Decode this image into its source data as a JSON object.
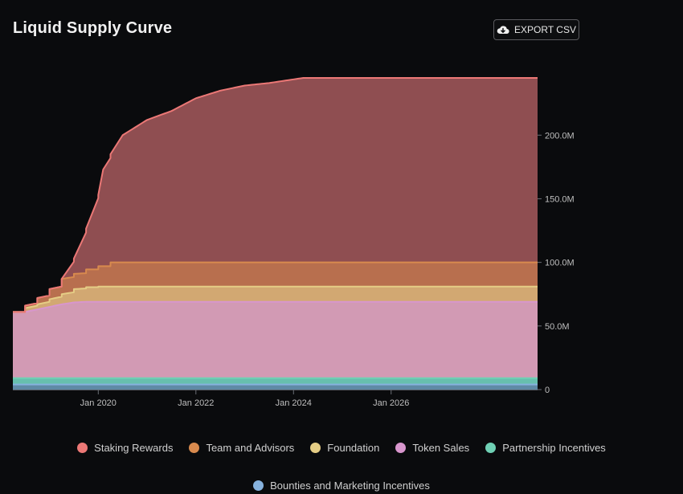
{
  "header": {
    "title": "Liquid Supply Curve",
    "export_label": "EXPORT CSV"
  },
  "icons": {
    "export": "cloud-download-icon"
  },
  "chart_data": {
    "type": "area",
    "stacked": true,
    "title": "Liquid Supply Curve",
    "x_unit": "year",
    "x_range": [
      2018.25,
      2029.0
    ],
    "y_range": [
      0,
      245
    ],
    "y_unit": "million tokens",
    "y_ticks": [
      {
        "value": 0,
        "label": "0"
      },
      {
        "value": 50,
        "label": "50.0M"
      },
      {
        "value": 100,
        "label": "100.0M"
      },
      {
        "value": 150,
        "label": "150.0M"
      },
      {
        "value": 200,
        "label": "200.0M"
      }
    ],
    "x_ticks": [
      {
        "value": 2020,
        "label": "Jan 2020"
      },
      {
        "value": 2022,
        "label": "Jan 2022"
      },
      {
        "value": 2024,
        "label": "Jan 2024"
      },
      {
        "value": 2026,
        "label": "Jan 2026"
      }
    ],
    "series": [
      {
        "name": "Bounties and Marketing Incentives",
        "color": "#86b2de",
        "fill": "#5f8aa6",
        "x": [
          2018.25,
          2029.0
        ],
        "y": [
          4.0,
          4.0
        ],
        "step": false
      },
      {
        "name": "Partnership Incentives",
        "color": "#6fd0b4",
        "fill": "#67bfae",
        "x": [
          2018.25,
          2029.0
        ],
        "y": [
          5.0,
          5.0
        ],
        "step": false
      },
      {
        "name": "Token Sales",
        "color": "#d896cd",
        "fill": "#d29ab4",
        "x": [
          2018.25,
          2018.5,
          2018.75,
          2019.0,
          2019.25,
          2019.5,
          2019.75,
          2020.0,
          2029.0
        ],
        "y": [
          52.0,
          52.0,
          54.0,
          56.0,
          58.0,
          59.5,
          60.0,
          60.0,
          60.0
        ],
        "step": false
      },
      {
        "name": "Foundation",
        "color": "#e5cd85",
        "fill": "#d2a872",
        "x": [
          2018.25,
          2018.5,
          2018.75,
          2019.0,
          2019.25,
          2019.5,
          2019.75,
          2020.0,
          2029.0
        ],
        "y": [
          0,
          3.0,
          4.0,
          6.0,
          8.0,
          10.5,
          11.5,
          12.0,
          12.0
        ],
        "step": true
      },
      {
        "name": "Team and Advisors",
        "color": "#d88a4e",
        "fill": "#b86f4e",
        "x": [
          2018.25,
          2018.5,
          2018.75,
          2019.0,
          2019.25,
          2019.5,
          2019.75,
          2020.0,
          2020.25,
          2029.0
        ],
        "y": [
          0,
          2.0,
          5.0,
          8.0,
          12.0,
          12.0,
          14.0,
          16.0,
          19.0,
          19.0
        ],
        "step": true
      },
      {
        "name": "Staking Rewards",
        "color": "#ec7876",
        "fill": "#8f4e51",
        "x": [
          2018.25,
          2019.25,
          2019.5,
          2019.75,
          2020.0,
          2020.1,
          2020.5,
          2021.0,
          2021.5,
          2022.0,
          2022.5,
          2023.0,
          2023.5,
          2024.2,
          2029.0
        ],
        "y": [
          0,
          0,
          12.0,
          32.0,
          56.0,
          76.0,
          100.0,
          112.0,
          119.0,
          129.0,
          135.0,
          139.0,
          141.0,
          145.0,
          145.0
        ],
        "step": false
      }
    ],
    "legend": [
      {
        "label": "Staking Rewards",
        "color": "#ec7876"
      },
      {
        "label": "Team and Advisors",
        "color": "#d88a4e"
      },
      {
        "label": "Foundation",
        "color": "#e5cd85"
      },
      {
        "label": "Token Sales",
        "color": "#d896cd"
      },
      {
        "label": "Partnership Incentives",
        "color": "#6fd0b4"
      },
      {
        "label": "Bounties and Marketing Incentives",
        "color": "#86b2de"
      }
    ]
  }
}
